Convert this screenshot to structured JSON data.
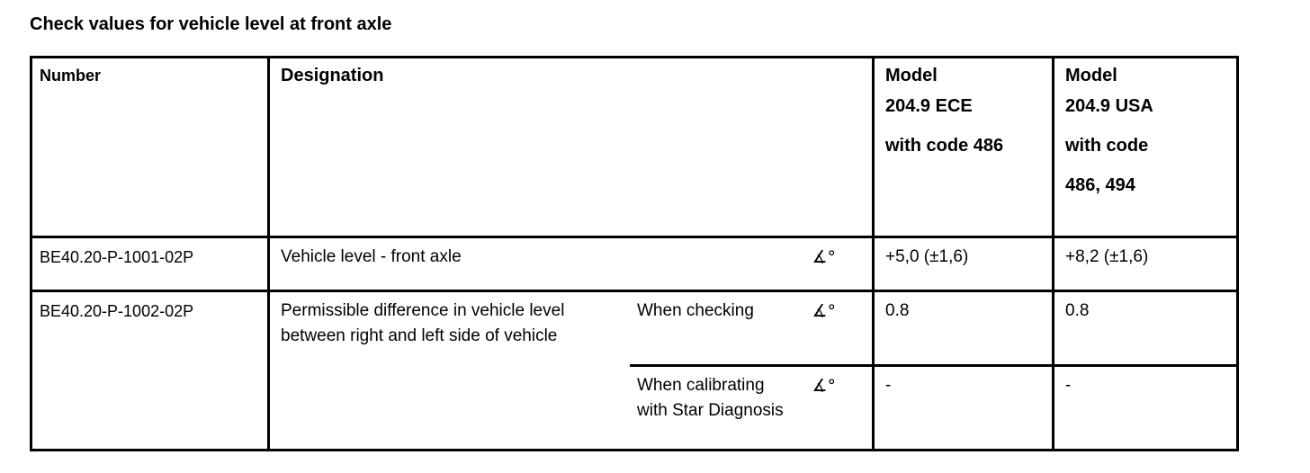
{
  "page_title": "Check values for vehicle level at front axle",
  "table": {
    "headers": {
      "number": "Number",
      "designation": "Designation",
      "model_ece": {
        "line1": "Model",
        "line2": "204.9 ECE",
        "line3": "with code 486"
      },
      "model_usa": {
        "line1": "Model",
        "line2": "204.9 USA",
        "line3": "with code",
        "line4": "486, 494"
      }
    },
    "rows": [
      {
        "number": "BE40.20-P-1001-02P",
        "designation": "Vehicle level - front axle",
        "unit": "∡°",
        "value_ece": "+5,0 (±1,6)",
        "value_usa": "+8,2 (±1,6)"
      },
      {
        "number": "BE40.20-P-1002-02P",
        "designation": "Permissible difference in vehicle level between right and left side of vehicle",
        "sub_rows": [
          {
            "condition": "When checking",
            "unit": "∡°",
            "value_ece": "0.8",
            "value_usa": "0.8"
          },
          {
            "condition": "When calibrating with Star Diagnosis",
            "unit": "∡°",
            "value_ece": "-",
            "value_usa": "-"
          }
        ]
      }
    ]
  }
}
